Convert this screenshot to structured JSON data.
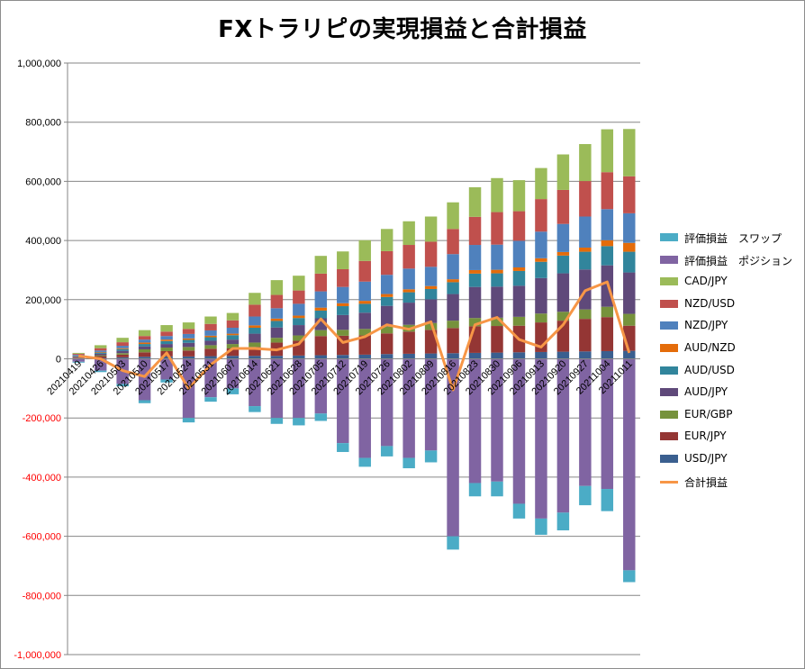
{
  "chart_data": {
    "type": "bar",
    "title": "FXトラリピの実現損益と合計損益",
    "xlabel": "",
    "ylabel": "",
    "ylim": [
      -1000000,
      1000000
    ],
    "ytick_step": 200000,
    "yticks": [
      "-1,000,000",
      "-800,000",
      "-600,000",
      "-400,000",
      "-200,000",
      "0",
      "200,000",
      "400,000",
      "600,000",
      "800,000",
      "1,000,000"
    ],
    "grid": true,
    "legend_position": "right",
    "categories": [
      "20210419",
      "20210426",
      "20210503",
      "20210510",
      "20210517",
      "20210524",
      "20210531",
      "20210607",
      "20210614",
      "20210621",
      "20210628",
      "20210705",
      "20210712",
      "20210719",
      "20210726",
      "20210802",
      "20210809",
      "20210816",
      "20210823",
      "20210830",
      "20210906",
      "20210913",
      "20210920",
      "20210927",
      "20211004",
      "20211011"
    ],
    "series": [
      {
        "name": "USD/JPY",
        "color": "#3a5f8f",
        "values": [
          2000,
          3000,
          5000,
          7000,
          8000,
          8000,
          9000,
          10000,
          10000,
          10000,
          11000,
          12000,
          13000,
          14000,
          16000,
          17000,
          18000,
          19000,
          20000,
          21000,
          22000,
          23000,
          24000,
          25000,
          26000,
          27000
        ]
      },
      {
        "name": "EUR/JPY",
        "color": "#943634",
        "values": [
          2000,
          6000,
          9000,
          15000,
          18000,
          20000,
          25000,
          25000,
          30000,
          45000,
          50000,
          65000,
          65000,
          65000,
          70000,
          75000,
          80000,
          85000,
          90000,
          90000,
          90000,
          100000,
          105000,
          110000,
          115000,
          85000
        ]
      },
      {
        "name": "EUR/GBP",
        "color": "#76923c",
        "values": [
          1000,
          3000,
          5000,
          10000,
          12000,
          12000,
          12000,
          15000,
          15000,
          16000,
          18000,
          20000,
          20000,
          22000,
          23000,
          23000,
          23000,
          25000,
          28000,
          28000,
          30000,
          30000,
          30000,
          32000,
          35000,
          40000
        ]
      },
      {
        "name": "AUD/JPY",
        "color": "#5f497a",
        "values": [
          3000,
          5000,
          8000,
          10000,
          12000,
          14000,
          15000,
          15000,
          30000,
          35000,
          35000,
          40000,
          50000,
          55000,
          70000,
          75000,
          80000,
          90000,
          105000,
          105000,
          105000,
          120000,
          130000,
          135000,
          140000,
          140000
        ]
      },
      {
        "name": "AUD/USD",
        "color": "#31859c",
        "values": [
          2000,
          4000,
          6000,
          8000,
          10000,
          10000,
          12000,
          15000,
          20000,
          22000,
          24000,
          26000,
          30000,
          30000,
          30000,
          35000,
          35000,
          40000,
          45000,
          45000,
          50000,
          55000,
          60000,
          60000,
          65000,
          70000
        ]
      },
      {
        "name": "AUD/NZD",
        "color": "#e46c0a",
        "values": [
          1000,
          2000,
          3000,
          5000,
          5000,
          5000,
          5000,
          5000,
          8000,
          8000,
          8000,
          10000,
          10000,
          10000,
          10000,
          10000,
          10000,
          10000,
          12000,
          12000,
          12000,
          12000,
          12000,
          14000,
          20000,
          30000
        ]
      },
      {
        "name": "NZD/JPY",
        "color": "#4f81bd",
        "values": [
          3000,
          5000,
          8000,
          10000,
          12000,
          15000,
          18000,
          20000,
          30000,
          35000,
          40000,
          55000,
          55000,
          65000,
          65000,
          70000,
          65000,
          85000,
          85000,
          85000,
          90000,
          90000,
          95000,
          105000,
          105000,
          100000
        ]
      },
      {
        "name": "NZD/USD",
        "color": "#c0504d",
        "values": [
          3000,
          8000,
          12000,
          12000,
          15000,
          17000,
          22000,
          25000,
          40000,
          45000,
          45000,
          60000,
          60000,
          70000,
          80000,
          80000,
          85000,
          85000,
          95000,
          110000,
          100000,
          110000,
          115000,
          120000,
          125000,
          125000
        ]
      },
      {
        "name": "CAD/JPY",
        "color": "#9bbb59",
        "values": [
          3000,
          10000,
          15000,
          20000,
          22000,
          22000,
          25000,
          25000,
          40000,
          50000,
          50000,
          60000,
          60000,
          70000,
          75000,
          80000,
          85000,
          90000,
          100000,
          115000,
          105000,
          105000,
          120000,
          125000,
          145000,
          160000
        ]
      },
      {
        "name": "評価損益　ポジション",
        "color": "#8064a2",
        "values": [
          -10000,
          -40000,
          -85000,
          -140000,
          -70000,
          -200000,
          -130000,
          -100000,
          -160000,
          -200000,
          -200000,
          -185000,
          -285000,
          -335000,
          -295000,
          -335000,
          -310000,
          -600000,
          -420000,
          -415000,
          -490000,
          -540000,
          -520000,
          -430000,
          -440000,
          -715000
        ]
      },
      {
        "name": "評価損益　スワップ",
        "color": "#4bacc6",
        "values": [
          -3000,
          -5000,
          -8000,
          -10000,
          -10000,
          -15000,
          -15000,
          -20000,
          -20000,
          -20000,
          -25000,
          -25000,
          -30000,
          -30000,
          -35000,
          -35000,
          -40000,
          -45000,
          -45000,
          -50000,
          -50000,
          -55000,
          -60000,
          -65000,
          -75000,
          -40000
        ]
      }
    ],
    "line": {
      "name": "合計損益",
      "color": "#f79646",
      "values": [
        10000,
        0,
        -40000,
        -60000,
        20000,
        -100000,
        -20000,
        35000,
        35000,
        30000,
        50000,
        135000,
        55000,
        75000,
        115000,
        100000,
        125000,
        -105000,
        115000,
        140000,
        65000,
        40000,
        115000,
        230000,
        260000,
        20000
      ]
    }
  }
}
